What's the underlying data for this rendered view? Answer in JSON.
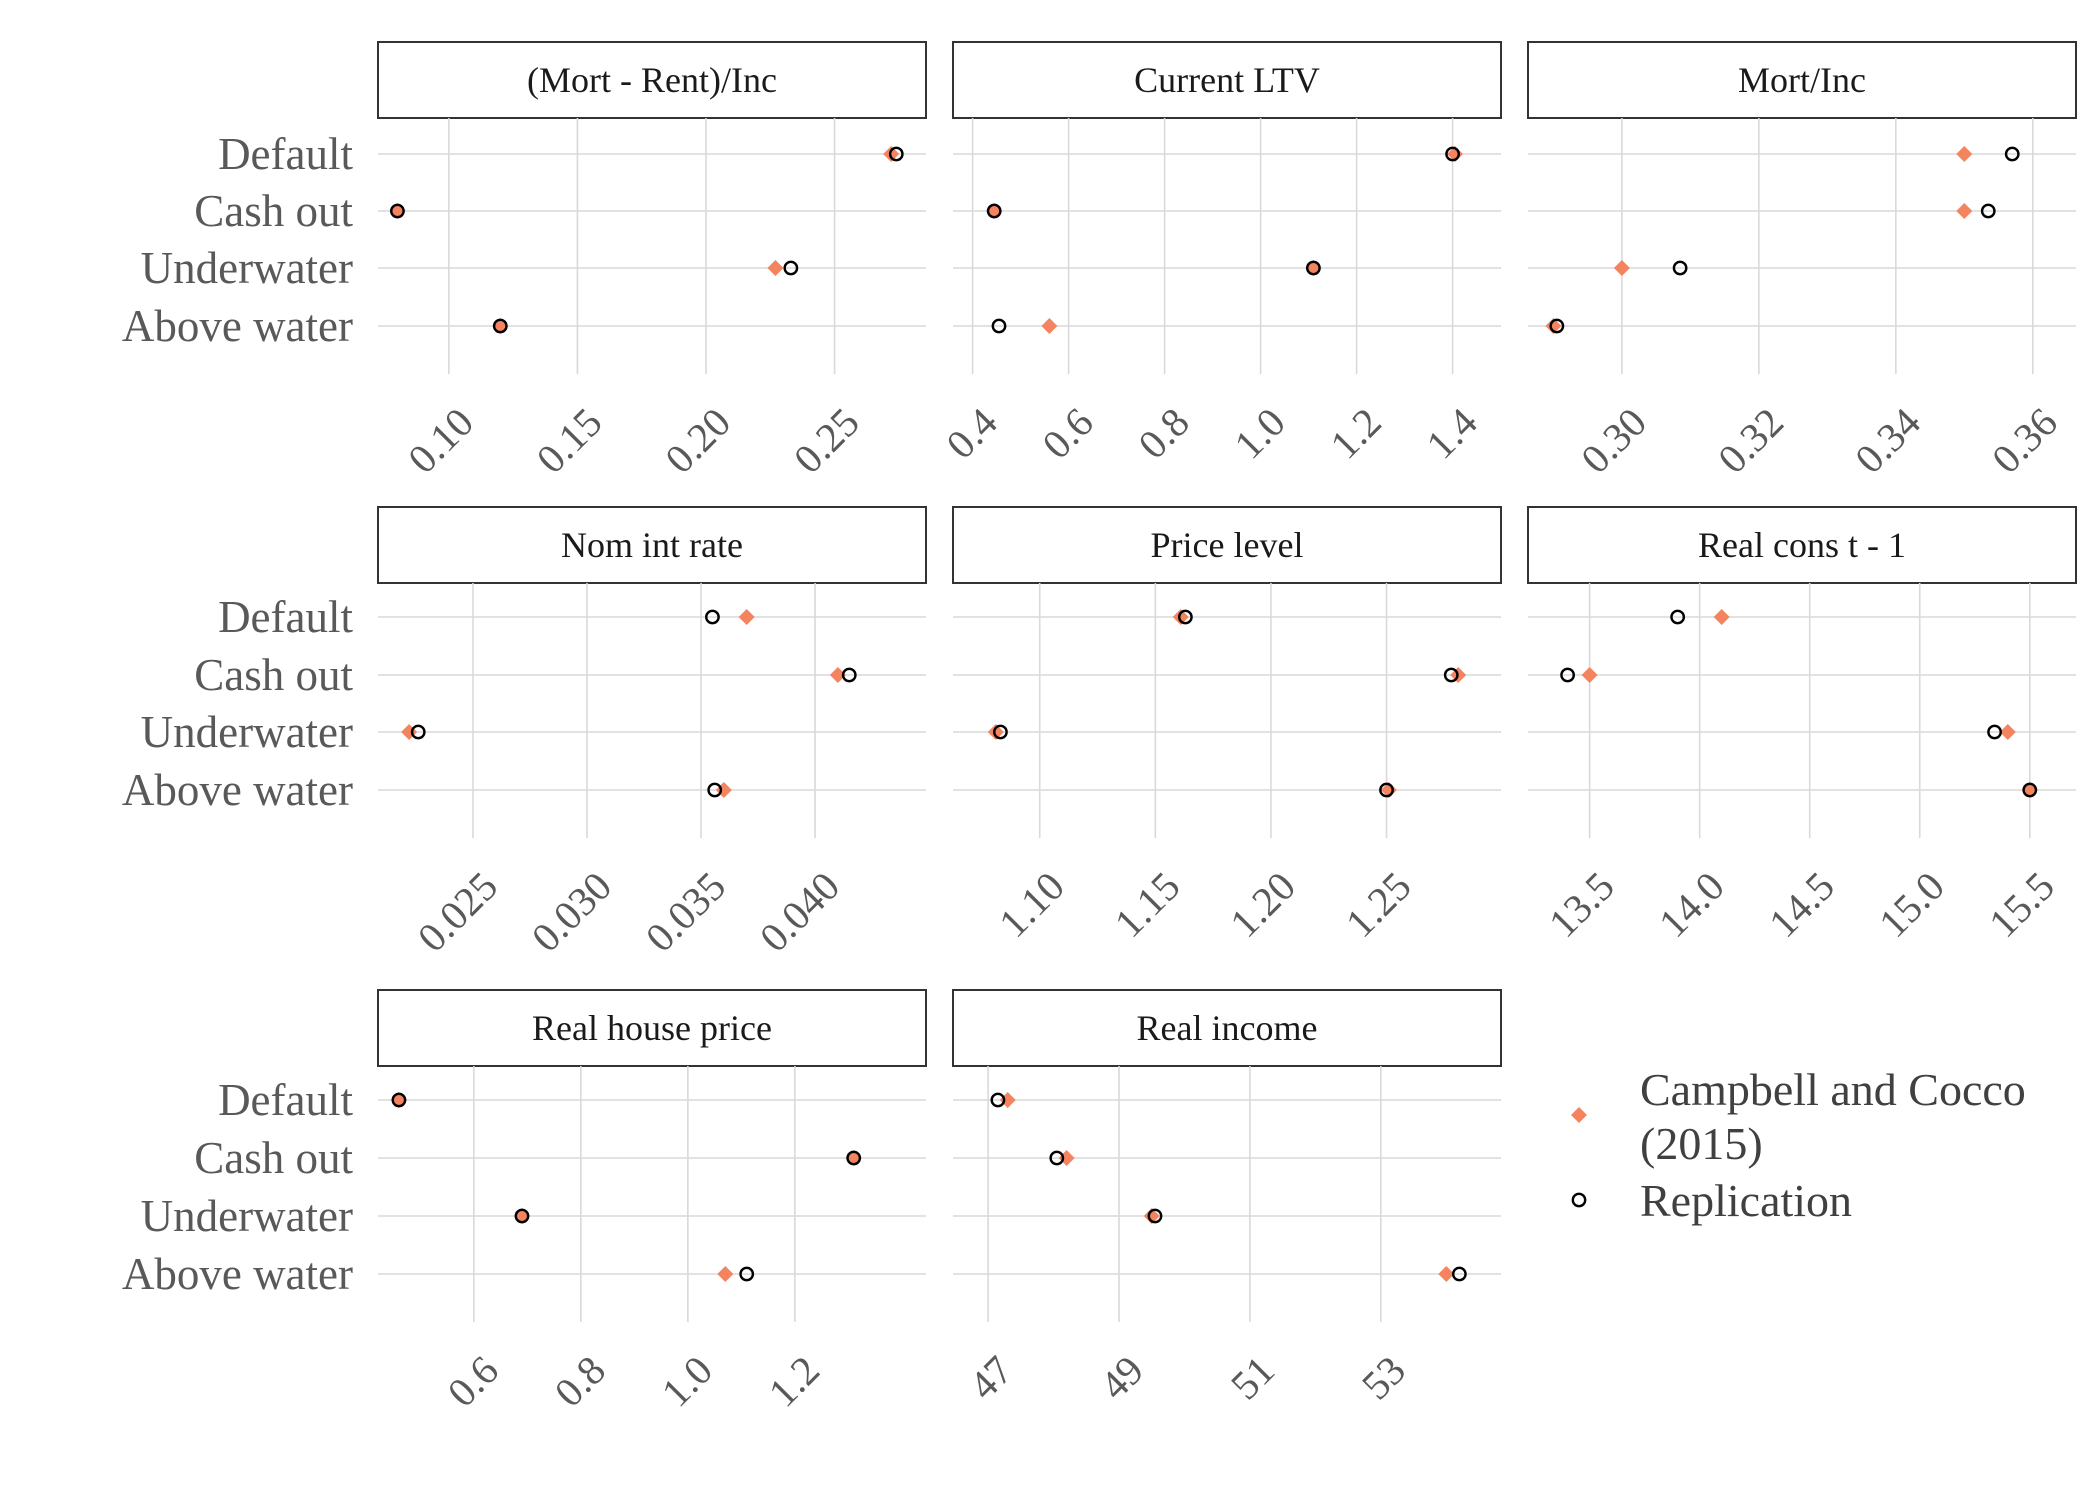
{
  "chart_data": {
    "type": "scatter",
    "categories": [
      "Default",
      "Cash out",
      "Underwater",
      "Above water"
    ],
    "legend": {
      "position": "right",
      "entries": [
        {
          "label_lines": [
            "Campbell and Cocco",
            "(2015)"
          ],
          "marker": "diamond",
          "color": "#F4845F"
        },
        {
          "label_lines": [
            "Replication"
          ],
          "marker": "open-circle",
          "color": "#000000"
        }
      ]
    },
    "panels": [
      {
        "title": "(Mort - Rent)/Inc",
        "xlim": [
          0.081,
          0.277
        ],
        "ticks": [
          0.1,
          0.15,
          0.2,
          0.25
        ],
        "tick_labels": [
          "0.10",
          "0.15",
          "0.20",
          "0.25"
        ],
        "series": [
          {
            "name": "Campbell and Cocco (2015)",
            "values": [
              0.272,
              0.08,
              0.227,
              0.12
            ]
          },
          {
            "name": "Replication",
            "values": [
              0.274,
              0.08,
              0.233,
              0.12
            ]
          }
        ]
      },
      {
        "title": "Current LTV",
        "xlim": [
          0.405,
          1.455
        ],
        "ticks": [
          0.4,
          0.6,
          0.8,
          1.0,
          1.2,
          1.4
        ],
        "tick_labels": [
          "0.4",
          "0.6",
          "0.8",
          "1.0",
          "1.2",
          "1.4"
        ],
        "series": [
          {
            "name": "Campbell and Cocco (2015)",
            "values": [
              1.405,
              0.445,
              1.11,
              0.56
            ]
          },
          {
            "name": "Replication",
            "values": [
              1.4,
              0.445,
              1.11,
              0.455
            ]
          }
        ]
      },
      {
        "title": "Mort/Inc",
        "xlim": [
          0.2895,
          0.3631
        ],
        "ticks": [
          0.3,
          0.32,
          0.34,
          0.36
        ],
        "tick_labels": [
          "0.30",
          "0.32",
          "0.34",
          "0.36"
        ],
        "series": [
          {
            "name": "Campbell and Cocco (2015)",
            "values": [
              0.35,
              0.35,
              0.3,
              0.29
            ]
          },
          {
            "name": "Replication",
            "values": [
              0.357,
              0.3535,
              0.3085,
              0.2905
            ]
          }
        ]
      },
      {
        "title": "Nom int rate",
        "xlim": [
          0.0218,
          0.0439
        ],
        "ticks": [
          0.025,
          0.03,
          0.035,
          0.04
        ],
        "tick_labels": [
          "0.025",
          "0.030",
          "0.035",
          "0.040"
        ],
        "series": [
          {
            "name": "Campbell and Cocco (2015)",
            "values": [
              0.037,
              0.041,
              0.0222,
              0.036
            ]
          },
          {
            "name": "Replication",
            "values": [
              0.0355,
              0.0415,
              0.0226,
              0.0356
            ]
          }
        ]
      },
      {
        "title": "Price level",
        "xlim": [
          1.072,
          1.29
        ],
        "ticks": [
          1.1,
          1.15,
          1.2,
          1.25
        ],
        "tick_labels": [
          "1.10",
          "1.15",
          "1.20",
          "1.25"
        ],
        "series": [
          {
            "name": "Campbell and Cocco (2015)",
            "values": [
              1.161,
              1.281,
              1.081,
              1.251
            ]
          },
          {
            "name": "Replication",
            "values": [
              1.163,
              1.278,
              1.083,
              1.25
            ]
          }
        ]
      },
      {
        "title": "Real cons t - 1",
        "xlim": [
          13.32,
          15.61
        ],
        "ticks": [
          13.5,
          14.0,
          14.5,
          15.0,
          15.5
        ],
        "tick_labels": [
          "13.5",
          "14.0",
          "14.5",
          "15.0",
          "15.5"
        ],
        "series": [
          {
            "name": "Campbell and Cocco (2015)",
            "values": [
              14.1,
              13.5,
              15.4,
              15.5
            ]
          },
          {
            "name": "Replication",
            "values": [
              13.9,
              13.4,
              15.34,
              15.5
            ]
          }
        ]
      },
      {
        "title": "Real house price",
        "xlim": [
          0.462,
          1.404
        ],
        "ticks": [
          0.6,
          0.8,
          1.0,
          1.2
        ],
        "tick_labels": [
          "0.6",
          "0.8",
          "1.0",
          "1.2"
        ],
        "series": [
          {
            "name": "Campbell and Cocco (2015)",
            "values": [
              0.46,
              1.31,
              0.69,
              1.07
            ]
          },
          {
            "name": "Replication",
            "values": [
              0.46,
              1.31,
              0.69,
              1.11
            ]
          }
        ]
      },
      {
        "title": "Real income",
        "xlim": [
          46.8,
          54.5
        ],
        "ticks": [
          47,
          49,
          51,
          53
        ],
        "tick_labels": [
          "47",
          "49",
          "51",
          "53"
        ],
        "series": [
          {
            "name": "Campbell and Cocco (2015)",
            "values": [
              47.3,
              48.2,
              49.5,
              54.0
            ]
          },
          {
            "name": "Replication",
            "values": [
              47.15,
              48.05,
              49.55,
              54.2
            ]
          }
        ]
      }
    ]
  }
}
